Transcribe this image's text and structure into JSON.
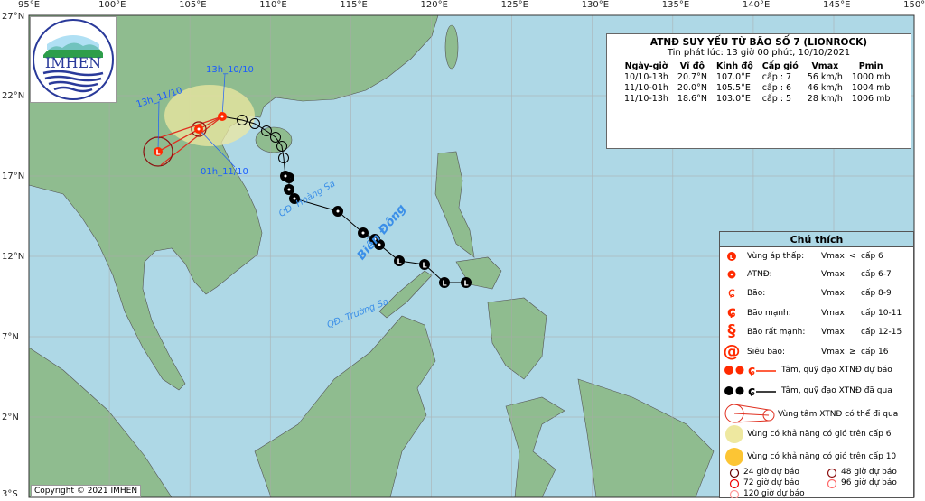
{
  "map": {
    "lon_ticks": [
      "95°E",
      "100°E",
      "105°E",
      "110°E",
      "115°E",
      "120°E",
      "125°E",
      "130°E",
      "135°E",
      "140°E",
      "145°E",
      "150°E"
    ],
    "lat_ticks": [
      "27°N",
      "22°N",
      "17°N",
      "12°N",
      "7°N",
      "2°N",
      "3°S"
    ],
    "lon_range": [
      95,
      150
    ],
    "lat_range": [
      -3,
      27
    ],
    "colors": {
      "sea": "#aed8e6",
      "land": "#8fbc8f",
      "forecast": "#ff2a00",
      "past": "#000000",
      "wind6": "#eee8a0"
    },
    "labels": {
      "bien_dong": "Biển Đông",
      "hoang_sa": "QĐ. Hoàng Sa",
      "truong_sa": "QĐ. Trường Sa"
    },
    "time_labels": [
      "13h_10/10",
      "01h_11/10",
      "13h_11/10"
    ]
  },
  "logo": {
    "text": "IMHEN",
    "arc_top": "VIỆN KHOA HỌC",
    "arc_bottom": "KHÍ TƯỢNG THỦY VĂN VÀ BIẾN ĐỔI KHÍ HẬU"
  },
  "info": {
    "title": "ATNĐ SUY YẾU TỪ BÃO SỐ 7 (LIONROCK)",
    "subtitle": "Tin phát lúc: 13 giờ 00 phút, 10/10/2021",
    "headers": [
      "Ngày-giờ",
      "Vĩ độ",
      "Kinh độ",
      "Cấp gió",
      "Vmax",
      "Pmin"
    ],
    "rows": [
      [
        "10/10-13h",
        "20.7°N",
        "107.0°E",
        "cấp : 7",
        "56 km/h",
        "1000 mb"
      ],
      [
        "11/10-01h",
        "20.0°N",
        "105.5°E",
        "cấp : 6",
        "46 km/h",
        "1004 mb"
      ],
      [
        "11/10-13h",
        "18.6°N",
        "103.0°E",
        "cấp : 5",
        "28 km/h",
        "1006 mb"
      ]
    ]
  },
  "legend": {
    "title": "Chú thích",
    "items": [
      {
        "name": "Vùng áp thấp:",
        "v": "Vmax",
        "op": "<",
        "lvl": "cấp 6"
      },
      {
        "name": "ATNĐ:",
        "v": "Vmax",
        "op": "",
        "lvl": "cấp 6-7"
      },
      {
        "name": "Bão:",
        "v": "Vmax",
        "op": "",
        "lvl": "cấp 8-9"
      },
      {
        "name": "Bão mạnh:",
        "v": "Vmax",
        "op": "",
        "lvl": "cấp 10-11"
      },
      {
        "name": "Bão rất mạnh:",
        "v": "Vmax",
        "op": "",
        "lvl": "cấp 12-15"
      },
      {
        "name": "Siêu bão:",
        "v": "Vmax",
        "op": "≥",
        "lvl": "cấp  16"
      }
    ],
    "track_forecast": "Tâm, quỹ đạo XTNĐ dự báo",
    "track_past": "Tâm, quỹ đạo XTNĐ đã qua",
    "cone": "Vùng tâm XTNĐ  có thể đi qua",
    "wind6": "Vùng có khả năng có gió trên cấp 6",
    "wind10": "Vùng có khả năng có gió trên cấp 10",
    "h24": "24 giờ dự báo",
    "h48": "48 giờ dự báo",
    "h72": "72 giờ dự báo",
    "h96": "96 giờ dự báo",
    "h120": "120 giờ dự báo"
  },
  "copyright": "Copyright © 2021 IMHEN"
}
